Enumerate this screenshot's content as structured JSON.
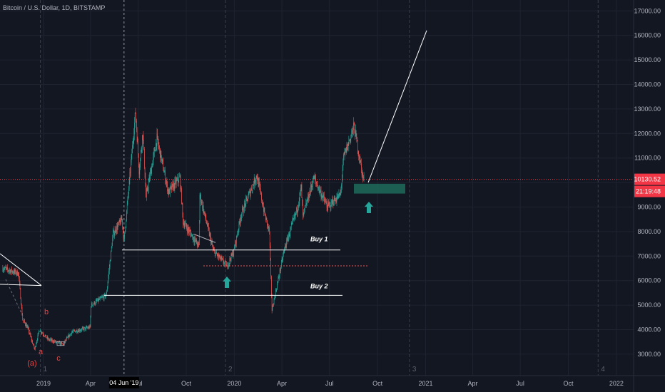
{
  "header": {
    "title": "Bitcoin / U.S. Dollar, 1D, BITSTAMP"
  },
  "colors": {
    "background": "#131722",
    "grid": "#1f2330",
    "up": "#26a69a",
    "down": "#ef5350",
    "price_line": "#f23645",
    "zone": "#1e6b5a",
    "arrow": "#26a69a",
    "lines": "#ffffff",
    "wave_labels": "#e04848"
  },
  "chart_data": {
    "type": "candlestick",
    "title": "Bitcoin / U.S. Dollar, 1D, BITSTAMP",
    "ylim": [
      2500,
      17500
    ],
    "y_ticks": [
      "3000.00",
      "4000.00",
      "5000.00",
      "6000.00",
      "7000.00",
      "8000.00",
      "9000.00",
      "10000.00",
      "11000.00",
      "12000.00",
      "13000.00",
      "14000.00",
      "15000.00",
      "16000.00",
      "17000.00"
    ],
    "x_ticks": [
      "2019",
      "Apr",
      "Jul",
      "Oct",
      "2020",
      "Apr",
      "Jul",
      "Oct",
      "2021",
      "Apr",
      "Jul",
      "Oct",
      "2022"
    ],
    "crosshair_date_label": "04 Jun '19",
    "current_price_label": "10130.52",
    "countdown_label": "21:19:48",
    "price_path": [
      [
        "2018-10-15",
        6500
      ],
      [
        "2018-11-14",
        6300
      ],
      [
        "2018-11-22",
        4400
      ],
      [
        "2018-12-01",
        4100
      ],
      [
        "2018-12-15",
        3200
      ],
      [
        "2018-12-24",
        4000
      ],
      [
        "2019-01-10",
        3600
      ],
      [
        "2019-02-07",
        3400
      ],
      [
        "2019-02-24",
        3900
      ],
      [
        "2019-03-31",
        4100
      ],
      [
        "2019-04-02",
        5000
      ],
      [
        "2019-05-01",
        5400
      ],
      [
        "2019-05-14",
        7900
      ],
      [
        "2019-05-31",
        8500
      ],
      [
        "2019-06-04",
        7600
      ],
      [
        "2019-06-26",
        12900
      ],
      [
        "2019-07-03",
        10500
      ],
      [
        "2019-07-10",
        12100
      ],
      [
        "2019-07-16",
        9400
      ],
      [
        "2019-08-06",
        11800
      ],
      [
        "2019-08-28",
        9600
      ],
      [
        "2019-09-19",
        10200
      ],
      [
        "2019-09-25",
        8400
      ],
      [
        "2019-10-25",
        7400
      ],
      [
        "2019-10-27",
        9500
      ],
      [
        "2019-11-22",
        7200
      ],
      [
        "2019-12-18",
        6600
      ],
      [
        "2019-12-31",
        7200
      ],
      [
        "2020-01-14",
        8700
      ],
      [
        "2020-02-13",
        10300
      ],
      [
        "2020-02-28",
        8700
      ],
      [
        "2020-03-08",
        8000
      ],
      [
        "2020-03-13",
        4800
      ],
      [
        "2020-04-06",
        7300
      ],
      [
        "2020-04-30",
        8900
      ],
      [
        "2020-05-08",
        9800
      ],
      [
        "2020-05-11",
        8600
      ],
      [
        "2020-06-01",
        10200
      ],
      [
        "2020-06-27",
        9000
      ],
      [
        "2020-07-22",
        9500
      ],
      [
        "2020-07-28",
        11000
      ],
      [
        "2020-08-17",
        12300
      ],
      [
        "2020-09-03",
        10200
      ],
      [
        "2020-09-05",
        10100
      ]
    ],
    "annotations": {
      "buy1": {
        "label": "Buy 1",
        "price": 7250
      },
      "buy2": {
        "label": "Buy 2",
        "price": 5400
      },
      "dashed_level": 6600,
      "target_price": 16200,
      "zone": [
        9550,
        9950
      ]
    },
    "wave_labels": [
      "b",
      "a",
      "c",
      "(a)"
    ],
    "cycle_labels": [
      "1",
      "2",
      "3",
      "4"
    ]
  }
}
